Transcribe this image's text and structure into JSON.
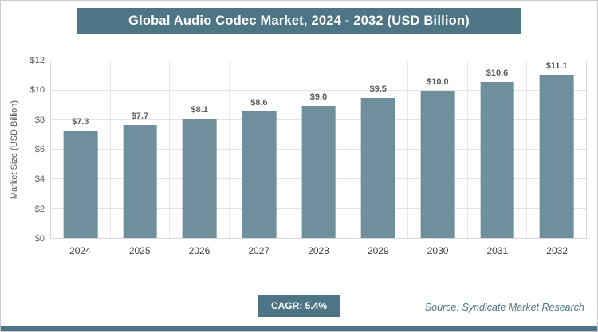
{
  "header": {
    "title": "Global Audio Codec Market, 2024 - 2032 (USD Billion)"
  },
  "chart_data": {
    "type": "bar",
    "title": "Global Audio Codec Market, 2024 - 2032 (USD Billion)",
    "categories": [
      "2024",
      "2025",
      "2026",
      "2027",
      "2028",
      "2029",
      "2030",
      "2031",
      "2032"
    ],
    "values": [
      7.3,
      7.7,
      8.1,
      8.6,
      9.0,
      9.5,
      10.0,
      10.6,
      11.1
    ],
    "value_labels": [
      "$7.3",
      "$7.7",
      "$8.1",
      "$8.6",
      "$9.0",
      "$9.5",
      "$10.0",
      "$10.6",
      "$11.1"
    ],
    "xlabel": "",
    "ylabel": "Market Size (USD Billion)",
    "ylim": [
      0,
      12
    ],
    "ytick_labels": [
      "$0",
      "$2",
      "$4",
      "$6",
      "$8",
      "$10",
      "$12"
    ],
    "grid": true,
    "legend": false,
    "bar_color": "#6f8f9d"
  },
  "footer": {
    "cagr": "CAGR: 5.4%",
    "source": "Source: Syndicate Market Research"
  },
  "colors": {
    "accent": "#4e7585",
    "bar": "#6f8f9d",
    "gridline": "#e3e3e3",
    "label_text": "#595959"
  }
}
